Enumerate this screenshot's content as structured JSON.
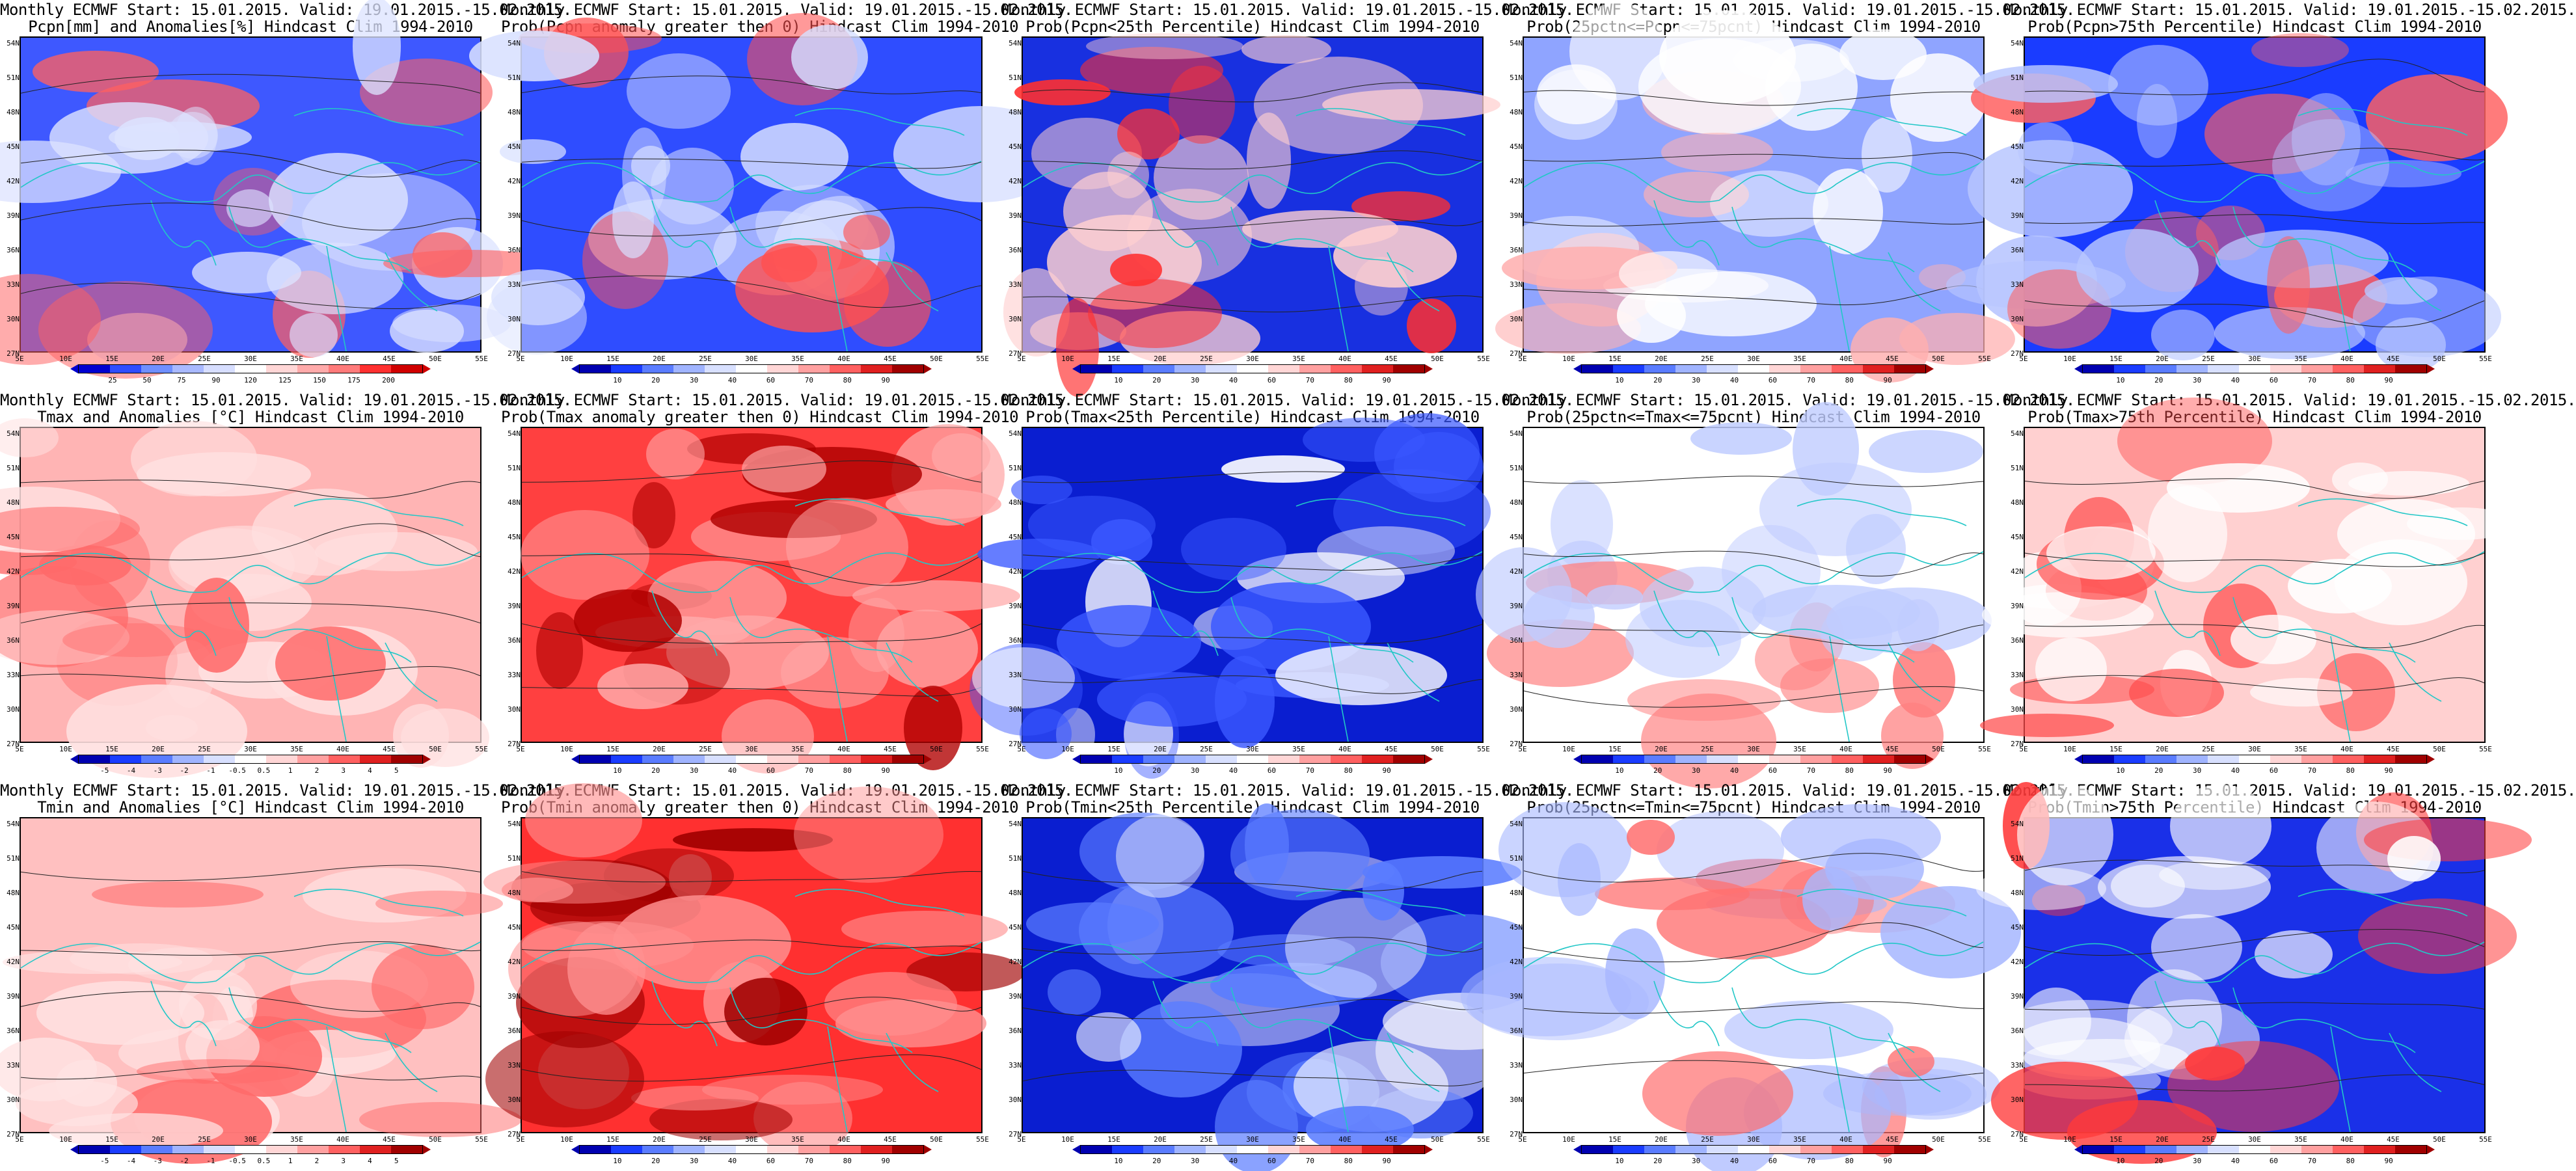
{
  "panels": [
    [
      {
        "title": "Monthly ECMWF Start: 15.01.2015. Valid: 19.01.2015.-15.02.2015.",
        "subtitle": "Pcpn[mm] and Anomalies[%] Hindcast Clim 1994-2010",
        "colorbar": {
          "colors": [
            "#0000d0",
            "#2f4dff",
            "#6f8fff",
            "#a9b9ff",
            "#d7deff",
            "#ffffff",
            "#ffd6d6",
            "#ffaaaa",
            "#ff7a7a",
            "#ff3030",
            "#d00000"
          ],
          "labels": [
            "25",
            "50",
            "75",
            "90",
            "120",
            "125",
            "150",
            "175",
            "200"
          ]
        },
        "field": {
          "base": "#3e58ff",
          "light": "#dde3ff",
          "warm": "#ff6060"
        }
      },
      {
        "title": "Monthly ECMWF Start: 15.01.2015. Valid: 19.01.2015.-15.02.2015.",
        "subtitle": "Prob(Pcpn anomaly greater then 0) Hindcast Clim 1994-2010",
        "colorbar": {
          "colors": [
            "#0000b0",
            "#1a3cff",
            "#5a7cff",
            "#a0b4ff",
            "#d8e0ff",
            "#ffffff",
            "#ffd6d6",
            "#ffa0a0",
            "#ff6060",
            "#e02020",
            "#a00000"
          ],
          "labels": [
            "10",
            "20",
            "30",
            "40",
            "60",
            "70",
            "80",
            "90"
          ]
        },
        "field": {
          "base": "#2f4dff",
          "light": "#d8e0ff",
          "warm": "#ff5050"
        }
      },
      {
        "title": "Monthly ECMWF Start: 15.01.2015. Valid: 19.01.2015.-15.02.2015.",
        "subtitle": "Prob(Pcpn<25th Percentile) Hindcast Clim 1994-2010",
        "colorbar": {
          "colors": [
            "#0000b0",
            "#1a3cff",
            "#5a7cff",
            "#a0b4ff",
            "#d8e0ff",
            "#ffffff",
            "#ffd6d6",
            "#ffa0a0",
            "#ff6060",
            "#e02020",
            "#a00000"
          ],
          "labels": [
            "10",
            "20",
            "30",
            "40",
            "60",
            "70",
            "80",
            "90"
          ]
        },
        "field": {
          "base": "#1830e0",
          "light": "#ffd0d0",
          "warm": "#ff3030"
        }
      },
      {
        "title": "Monthly ECMWF Start: 15.01.2015. Valid: 19.01.2015.-15.02.2015.",
        "subtitle": "Prob(25pctn<=Pcpn<=75pcnt) Hindcast Clim 1994-2010",
        "colorbar": {
          "colors": [
            "#0000b0",
            "#1a3cff",
            "#5a7cff",
            "#a0b4ff",
            "#d8e0ff",
            "#ffffff",
            "#ffd6d6",
            "#ffa0a0",
            "#ff6060",
            "#e02020",
            "#a00000"
          ],
          "labels": [
            "10",
            "20",
            "30",
            "40",
            "60",
            "70",
            "80",
            "90"
          ]
        },
        "field": {
          "base": "#8fa4ff",
          "light": "#ffffff",
          "warm": "#ffb0b0"
        }
      },
      {
        "title": "Monthly ECMWF Start: 15.01.2015. Valid: 19.01.2015.-15.02.2015.",
        "subtitle": "Prob(Pcpn>75th Percentile) Hindcast Clim 1994-2010",
        "colorbar": {
          "colors": [
            "#0000b0",
            "#1a3cff",
            "#5a7cff",
            "#a0b4ff",
            "#d8e0ff",
            "#ffffff",
            "#ffd6d6",
            "#ffa0a0",
            "#ff6060",
            "#e02020",
            "#a00000"
          ],
          "labels": [
            "10",
            "20",
            "30",
            "40",
            "60",
            "70",
            "80",
            "90"
          ]
        },
        "field": {
          "base": "#1a3cff",
          "light": "#b8c6ff",
          "warm": "#ff6060"
        }
      }
    ],
    [
      {
        "title": "Monthly ECMWF Start: 15.01.2015. Valid: 19.01.2015.-15.02.2015.",
        "subtitle": "Tmax and Anomalies [°C] Hindcast Clim 1994-2010",
        "colorbar": {
          "colors": [
            "#0000b0",
            "#1a3cff",
            "#5a7cff",
            "#a0b4ff",
            "#d8e0ff",
            "#ffffff",
            "#ffd6d6",
            "#ffa0a0",
            "#ff6060",
            "#e02020",
            "#a00000"
          ],
          "labels": [
            "-5",
            "-4",
            "-3",
            "-2",
            "-1",
            "-0.5",
            "0.5",
            "1",
            "2",
            "3",
            "4",
            "5"
          ]
        },
        "field": {
          "base": "#ffb4b4",
          "light": "#ffe0e0",
          "warm": "#ff6a6a"
        }
      },
      {
        "title": "Monthly ECMWF Start: 15.01.2015. Valid: 19.01.2015.-15.02.2015.",
        "subtitle": "Prob(Tmax anomaly greater then 0) Hindcast Clim 1994-2010",
        "colorbar": {
          "colors": [
            "#0000b0",
            "#1a3cff",
            "#5a7cff",
            "#a0b4ff",
            "#d8e0ff",
            "#ffffff",
            "#ffd6d6",
            "#ffa0a0",
            "#ff6060",
            "#e02020",
            "#a00000"
          ],
          "labels": [
            "10",
            "20",
            "30",
            "40",
            "60",
            "70",
            "80",
            "90"
          ]
        },
        "field": {
          "base": "#ff4040",
          "light": "#ffa8a8",
          "warm": "#b00000"
        }
      },
      {
        "title": "Monthly ECMWF Start: 15.01.2015. Valid: 19.01.2015.-15.02.2015.",
        "subtitle": "Prob(Tmax<25th Percentile) Hindcast Clim 1994-2010",
        "colorbar": {
          "colors": [
            "#0000b0",
            "#1a3cff",
            "#5a7cff",
            "#a0b4ff",
            "#d8e0ff",
            "#ffffff",
            "#ffd6d6",
            "#ffa0a0",
            "#ff6060",
            "#e02020",
            "#a00000"
          ],
          "labels": [
            "10",
            "20",
            "30",
            "40",
            "60",
            "70",
            "80",
            "90"
          ]
        },
        "field": {
          "base": "#0a1ed0",
          "light": "#3a58ff",
          "warm": "#ffffff"
        }
      },
      {
        "title": "Monthly ECMWF Start: 15.01.2015. Valid: 19.01.2015.-15.02.2015.",
        "subtitle": "Prob(25pctn<=Tmax<=75pcnt) Hindcast Clim 1994-2010",
        "colorbar": {
          "colors": [
            "#0000b0",
            "#1a3cff",
            "#5a7cff",
            "#a0b4ff",
            "#d8e0ff",
            "#ffffff",
            "#ffd6d6",
            "#ffa0a0",
            "#ff6060",
            "#e02020",
            "#a00000"
          ],
          "labels": [
            "10",
            "20",
            "30",
            "40",
            "60",
            "70",
            "80",
            "90"
          ]
        },
        "field": {
          "base": "#ffffff",
          "light": "#c0ccff",
          "warm": "#ff8080"
        }
      },
      {
        "title": "Monthly ECMWF Start: 15.01.2015. Valid: 19.01.2015.-15.02.2015.",
        "subtitle": "Prob(Tmax>75th Percentile) Hindcast Clim 1994-2010",
        "colorbar": {
          "colors": [
            "#0000b0",
            "#1a3cff",
            "#5a7cff",
            "#a0b4ff",
            "#d8e0ff",
            "#ffffff",
            "#ffd6d6",
            "#ffa0a0",
            "#ff6060",
            "#e02020",
            "#a00000"
          ],
          "labels": [
            "10",
            "20",
            "30",
            "40",
            "60",
            "70",
            "80",
            "90"
          ]
        },
        "field": {
          "base": "#ffd0d0",
          "light": "#ffffff",
          "warm": "#ff4a4a"
        }
      }
    ],
    [
      {
        "title": "Monthly ECMWF Start: 15.01.2015. Valid: 19.01.2015.-15.02.2015.",
        "subtitle": "Tmin and Anomalies [°C] Hindcast Clim 1994-2010",
        "colorbar": {
          "colors": [
            "#0000b0",
            "#1a3cff",
            "#5a7cff",
            "#a0b4ff",
            "#d8e0ff",
            "#ffffff",
            "#ffd6d6",
            "#ffa0a0",
            "#ff6060",
            "#e02020",
            "#a00000"
          ],
          "labels": [
            "-5",
            "-4",
            "-3",
            "-2",
            "-1",
            "-0.5",
            "0.5",
            "1",
            "2",
            "3",
            "4",
            "5"
          ]
        },
        "field": {
          "base": "#ffc0c0",
          "light": "#ffe4e4",
          "warm": "#ff6a6a"
        }
      },
      {
        "title": "Monthly ECMWF Start: 15.01.2015. Valid: 19.01.2015.-15.02.2015.",
        "subtitle": "Prob(Tmin anomaly greater then 0) Hindcast Clim 1994-2010",
        "colorbar": {
          "colors": [
            "#0000b0",
            "#1a3cff",
            "#5a7cff",
            "#a0b4ff",
            "#d8e0ff",
            "#ffffff",
            "#ffd6d6",
            "#ffa0a0",
            "#ff6060",
            "#e02020",
            "#a00000"
          ],
          "labels": [
            "10",
            "20",
            "30",
            "40",
            "60",
            "70",
            "80",
            "90"
          ]
        },
        "field": {
          "base": "#ff3030",
          "light": "#ff9090",
          "warm": "#a00000"
        }
      },
      {
        "title": "Monthly ECMWF Start: 15.01.2015. Valid: 19.01.2015.-15.02.2015.",
        "subtitle": "Prob(Tmin<25th Percentile) Hindcast Clim 1994-2010",
        "colorbar": {
          "colors": [
            "#0000b0",
            "#1a3cff",
            "#5a7cff",
            "#a0b4ff",
            "#d8e0ff",
            "#ffffff",
            "#ffd6d6",
            "#ffa0a0",
            "#ff6060",
            "#e02020",
            "#a00000"
          ],
          "labels": [
            "10",
            "20",
            "30",
            "40",
            "60",
            "70",
            "80",
            "90"
          ]
        },
        "field": {
          "base": "#0a1ed0",
          "light": "#5a7cff",
          "warm": "#ffffff"
        }
      },
      {
        "title": "Monthly ECMWF Start: 15.01.2015. Valid: 19.01.2015.-15.02.2015.",
        "subtitle": "Prob(25pctn<=Tmin<=75pcnt) Hindcast Clim 1994-2010",
        "colorbar": {
          "colors": [
            "#0000b0",
            "#1a3cff",
            "#5a7cff",
            "#a0b4ff",
            "#d8e0ff",
            "#ffffff",
            "#ffd6d6",
            "#ffa0a0",
            "#ff6060",
            "#e02020",
            "#a00000"
          ],
          "labels": [
            "10",
            "20",
            "30",
            "40",
            "60",
            "70",
            "80",
            "90"
          ]
        },
        "field": {
          "base": "#ffffff",
          "light": "#a8b8ff",
          "warm": "#ff7070"
        }
      },
      {
        "title": "Monthly ECMWF Start: 15.01.2015. Valid: 19.01.2015.-15.02.2015.",
        "subtitle": "Prob(Tmin>75th Percentile) Hindcast Clim 1994-2010",
        "colorbar": {
          "colors": [
            "#0000b0",
            "#1a3cff",
            "#5a7cff",
            "#a0b4ff",
            "#d8e0ff",
            "#ffffff",
            "#ffd6d6",
            "#ffa0a0",
            "#ff6060",
            "#e02020",
            "#a00000"
          ],
          "labels": [
            "10",
            "20",
            "30",
            "40",
            "60",
            "70",
            "80",
            "90"
          ]
        },
        "field": {
          "base": "#1a30e8",
          "light": "#ffffff",
          "warm": "#ff3a3a"
        }
      }
    ]
  ],
  "lat_labels": [
    "54N",
    "51N",
    "48N",
    "45N",
    "42N",
    "39N",
    "36N",
    "33N",
    "30N",
    "27N"
  ],
  "lon_labels": [
    "5E",
    "10E",
    "15E",
    "20E",
    "25E",
    "30E",
    "35E",
    "40E",
    "45E",
    "50E",
    "55E"
  ],
  "colors": {
    "coast": "#22c7c7",
    "contour": "#222222"
  }
}
